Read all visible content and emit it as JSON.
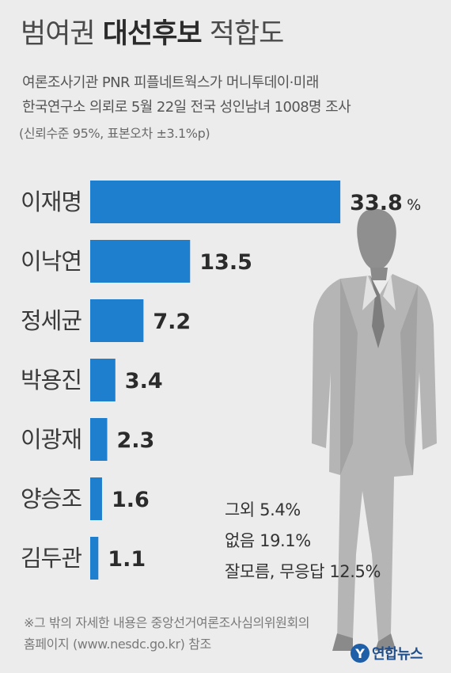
{
  "header": {
    "title_a": "범여권",
    "title_b": "대선후보",
    "title_c": "적합도",
    "line1": "여론조사기관 PNR 피플네트웍스가 머니투데이·미래",
    "line2": "한국연구소 의뢰로 5월 22일 전국 성인남녀 1008명 조사",
    "line3": "(신뢰수준 95%, 표본오차 ±3.1%p)"
  },
  "chart_data": {
    "type": "bar",
    "orientation": "horizontal",
    "categories": [
      "이재명",
      "이낙연",
      "정세균",
      "박용진",
      "이광재",
      "양승조",
      "김두관"
    ],
    "values": [
      33.8,
      13.5,
      7.2,
      3.4,
      2.3,
      1.6,
      1.1
    ],
    "value_labels": [
      "33.8",
      "13.5",
      "7.2",
      "3.4",
      "2.3",
      "1.6",
      "1.1"
    ],
    "first_label_unit": "%",
    "bar_color": "#1f7fcf",
    "xlim": [
      0,
      34
    ]
  },
  "others": {
    "other": "그외 5.4%",
    "none": "없음 19.1%",
    "dontknow": "잘모름, 무응답 12.5%"
  },
  "footer": {
    "line1": "※그 밖의 자세한 내용은 중앙선거여론조사심의위원회의",
    "line2": "홈페이지 (www.nesdc.go.kr) 참조",
    "logo_mark": "Y",
    "logo_text": "연합뉴스"
  }
}
